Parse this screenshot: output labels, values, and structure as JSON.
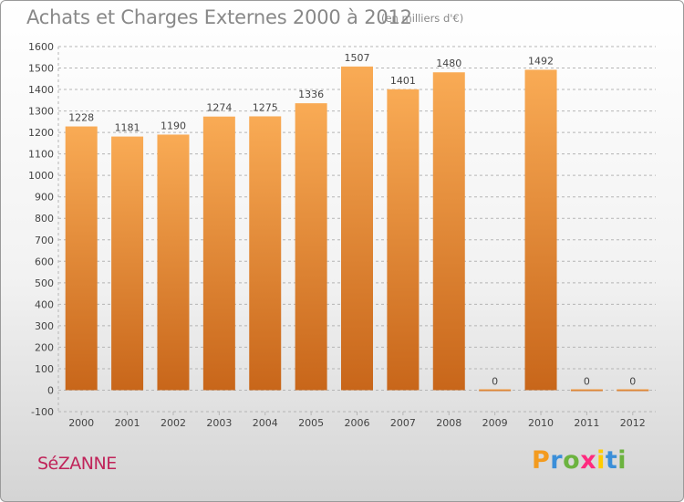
{
  "header": {
    "title": "Achats et Charges Externes 2000 à 2012",
    "unit": "(en milliers d'€)"
  },
  "footer": {
    "city": "SéZANNE",
    "logo_text": "Proxiti",
    "logo_colors": [
      "#f39b1f",
      "#3b8fd9",
      "#6cb33f",
      "#ff2a7f",
      "#ffcc00",
      "#3b8fd9",
      "#6cb33f"
    ]
  },
  "colors": {
    "bar_light": "#f9ab55",
    "bar_dark": "#c8661a",
    "grid": "#b5b5b5",
    "axis_text": "#444444"
  },
  "chart_data": {
    "type": "bar",
    "title": "Achats et Charges Externes 2000 à 2012",
    "subtitle": "(en milliers d'€)",
    "xlabel": "",
    "ylabel": "",
    "categories": [
      "2000",
      "2001",
      "2002",
      "2003",
      "2004",
      "2005",
      "2006",
      "2007",
      "2008",
      "2009",
      "2010",
      "2011",
      "2012"
    ],
    "values": [
      1228,
      1181,
      1190,
      1274,
      1275,
      1336,
      1507,
      1401,
      1480,
      0,
      1492,
      0,
      0
    ],
    "data_labels": [
      "1228",
      "1181",
      "1190",
      "1274",
      "1275",
      "1336",
      "1507",
      "1401",
      "1480",
      "0",
      "1492",
      "0",
      "0"
    ],
    "ylim": [
      -100,
      1600
    ],
    "yticks": [
      -100,
      0,
      100,
      200,
      300,
      400,
      500,
      600,
      700,
      800,
      900,
      1000,
      1100,
      1200,
      1300,
      1400,
      1500,
      1600
    ],
    "grid": true,
    "legend": "none"
  }
}
